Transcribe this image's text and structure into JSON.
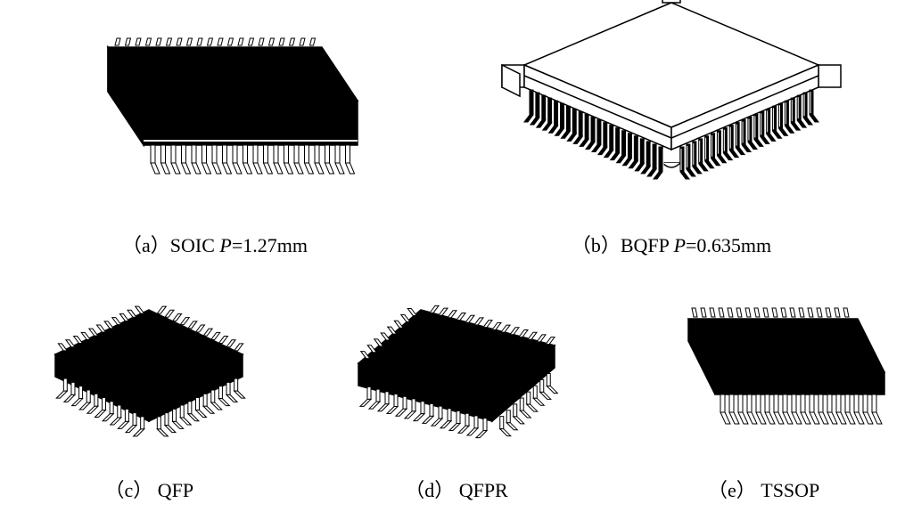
{
  "figure": {
    "background_color": "#ffffff",
    "stroke_color": "#000000",
    "fill_dark": "#000000",
    "fill_light": "#ffffff",
    "caption_fontsize": 22,
    "caption_font": "Times New Roman",
    "packages": [
      {
        "id": "a",
        "name": "SOIC",
        "pitch_param": "P",
        "pitch_value": "1.27mm",
        "caption_prefix": "（a）",
        "style": "filled-body",
        "pin_sides": 2,
        "view": "isometric"
      },
      {
        "id": "b",
        "name": "BQFP",
        "pitch_param": "P",
        "pitch_value": "0.635mm",
        "caption_prefix": "（b）",
        "style": "outline-body-with-bumpers",
        "pin_sides": 4,
        "view": "isometric"
      },
      {
        "id": "c",
        "name": "QFP",
        "caption_prefix": "（c）",
        "style": "filled-body",
        "pin_sides": 4,
        "view": "isometric",
        "shape": "square"
      },
      {
        "id": "d",
        "name": "QFPR",
        "caption_prefix": "（d）",
        "style": "filled-body",
        "pin_sides": 4,
        "view": "isometric",
        "shape": "rectangle"
      },
      {
        "id": "e",
        "name": "TSSOP",
        "caption_prefix": "（e）",
        "style": "filled-body",
        "pin_sides": 2,
        "view": "isometric"
      }
    ]
  },
  "captions": {
    "a": "（a）SOIC  ",
    "a_param": "P",
    "a_val": "=1.27mm",
    "b": "（b）BQFP  ",
    "b_param": "P",
    "b_val": "=0.635mm",
    "c": "（c） QFP",
    "d": "（d） QFPR",
    "e": "（e） TSSOP"
  }
}
